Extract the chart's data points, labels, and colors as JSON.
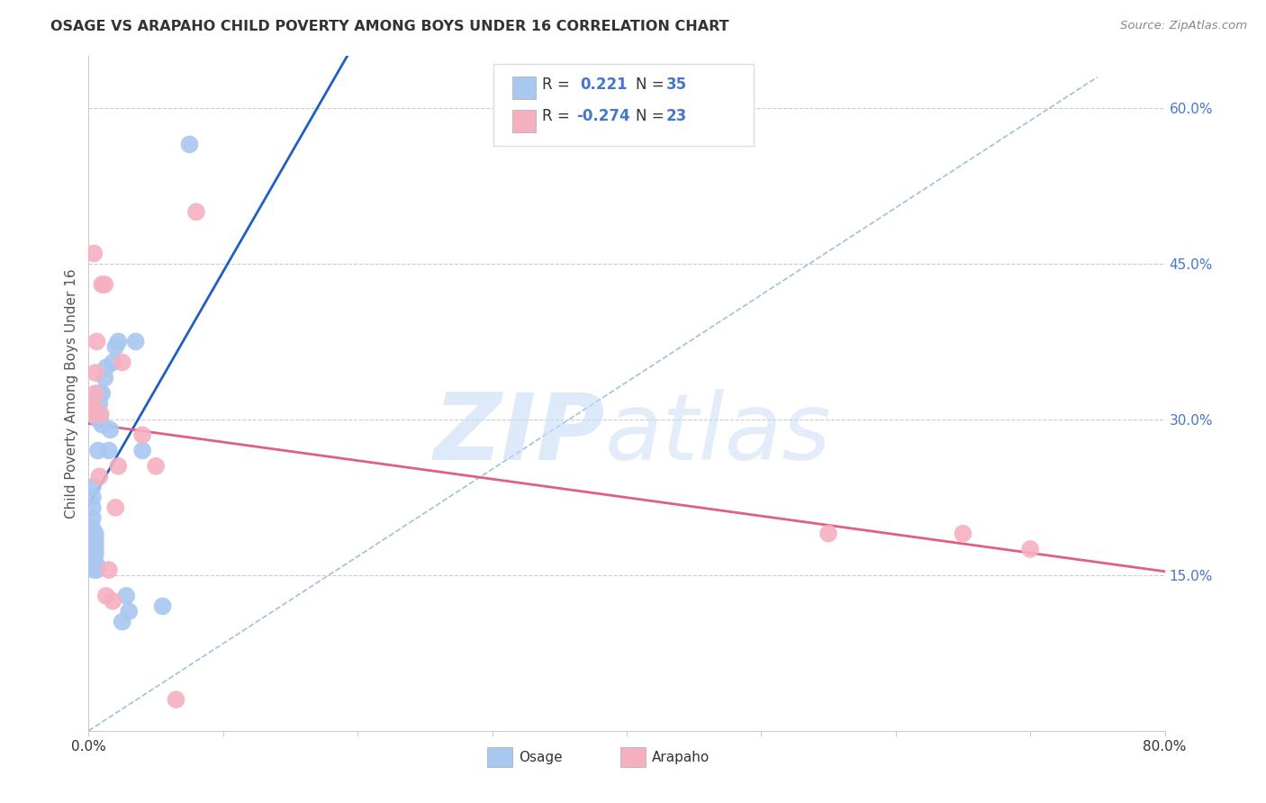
{
  "title": "OSAGE VS ARAPAHO CHILD POVERTY AMONG BOYS UNDER 16 CORRELATION CHART",
  "source": "Source: ZipAtlas.com",
  "ylabel": "Child Poverty Among Boys Under 16",
  "xlim": [
    0.0,
    0.8
  ],
  "ylim": [
    0.0,
    0.65
  ],
  "yticks_right": [
    0.15,
    0.3,
    0.45,
    0.6
  ],
  "ytick_right_labels": [
    "15.0%",
    "30.0%",
    "45.0%",
    "60.0%"
  ],
  "osage_color": "#A8C8F0",
  "arapaho_color": "#F5B0C0",
  "osage_line_color": "#2060C0",
  "arapaho_line_color": "#E06080",
  "dashed_line_color": "#A0C0E0",
  "legend_R_osage": "0.221",
  "legend_N_osage": "35",
  "legend_R_arapaho": "-0.274",
  "legend_N_arapaho": "23",
  "legend_color": "#4477CC",
  "osage_x": [
    0.003,
    0.003,
    0.003,
    0.003,
    0.003,
    0.004,
    0.004,
    0.005,
    0.005,
    0.005,
    0.005,
    0.005,
    0.006,
    0.006,
    0.007,
    0.007,
    0.008,
    0.008,
    0.008,
    0.01,
    0.01,
    0.012,
    0.013,
    0.015,
    0.016,
    0.018,
    0.02,
    0.022,
    0.025,
    0.028,
    0.03,
    0.035,
    0.04,
    0.055,
    0.075
  ],
  "osage_y": [
    0.195,
    0.205,
    0.215,
    0.225,
    0.235,
    0.155,
    0.165,
    0.17,
    0.175,
    0.18,
    0.185,
    0.19,
    0.155,
    0.16,
    0.27,
    0.3,
    0.305,
    0.315,
    0.325,
    0.295,
    0.325,
    0.34,
    0.35,
    0.27,
    0.29,
    0.355,
    0.37,
    0.375,
    0.105,
    0.13,
    0.115,
    0.375,
    0.27,
    0.12,
    0.565
  ],
  "arapaho_x": [
    0.003,
    0.003,
    0.004,
    0.005,
    0.005,
    0.006,
    0.008,
    0.009,
    0.01,
    0.012,
    0.013,
    0.015,
    0.018,
    0.02,
    0.022,
    0.025,
    0.04,
    0.05,
    0.065,
    0.55,
    0.65,
    0.7,
    0.08
  ],
  "arapaho_y": [
    0.305,
    0.315,
    0.46,
    0.325,
    0.345,
    0.375,
    0.245,
    0.305,
    0.43,
    0.43,
    0.13,
    0.155,
    0.125,
    0.215,
    0.255,
    0.355,
    0.285,
    0.255,
    0.03,
    0.19,
    0.19,
    0.175,
    0.5
  ]
}
